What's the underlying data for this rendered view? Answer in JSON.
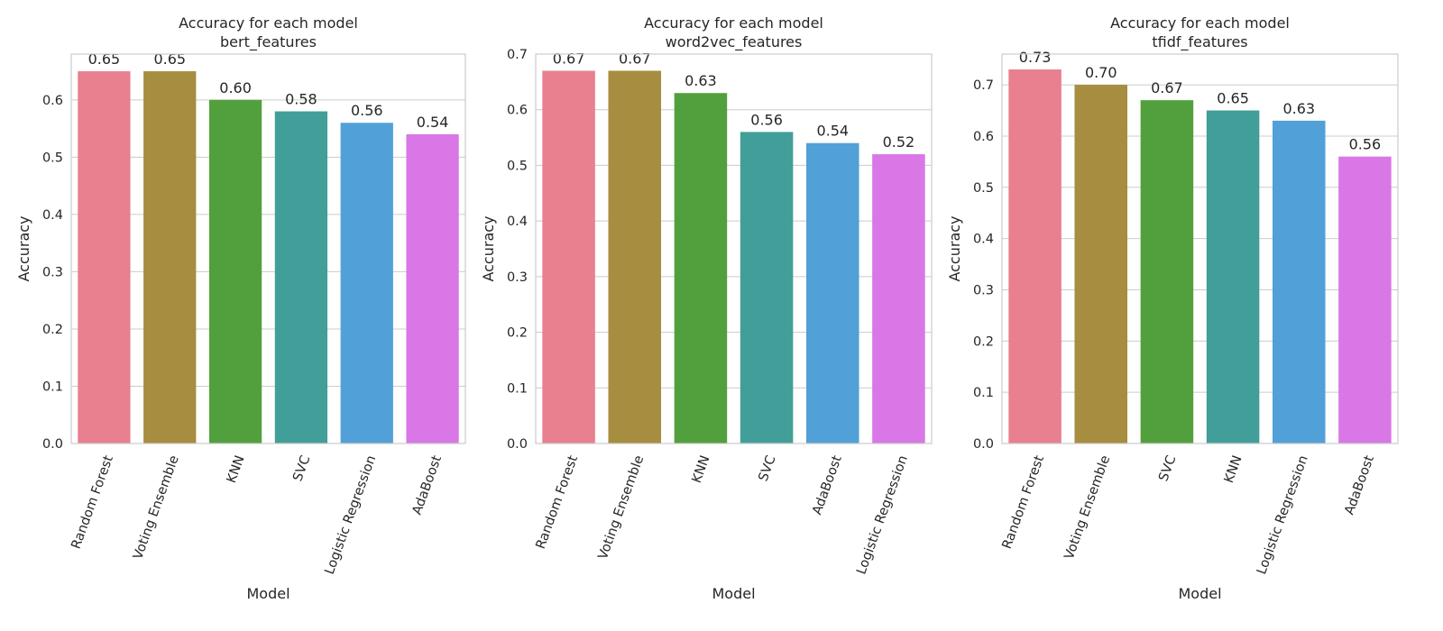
{
  "chart_data": [
    {
      "type": "bar",
      "title": "Accuracy for each model",
      "subtitle": "bert_features",
      "xlabel": "Model",
      "ylabel": "Accuracy",
      "ylim": [
        0,
        0.68
      ],
      "yticks": [
        "0.0",
        "0.1",
        "0.2",
        "0.3",
        "0.4",
        "0.5",
        "0.6"
      ],
      "grid": true,
      "categories": [
        "Random Forest",
        "Voting Ensemble",
        "KNN",
        "SVC",
        "Logistic Regression",
        "AdaBoost"
      ],
      "values": [
        0.65,
        0.65,
        0.6,
        0.58,
        0.56,
        0.54
      ],
      "value_labels": [
        "0.65",
        "0.65",
        "0.60",
        "0.58",
        "0.56",
        "0.54"
      ],
      "colors": [
        "#e8808f",
        "#a68d3f",
        "#52a03d",
        "#429e98",
        "#51a0d8",
        "#d977e6"
      ]
    },
    {
      "type": "bar",
      "title": "Accuracy for each model",
      "subtitle": "word2vec_features",
      "xlabel": "Model",
      "ylabel": "Accuracy",
      "ylim": [
        0,
        0.7
      ],
      "yticks": [
        "0.0",
        "0.1",
        "0.2",
        "0.3",
        "0.4",
        "0.5",
        "0.6",
        "0.7"
      ],
      "grid": true,
      "categories": [
        "Random Forest",
        "Voting Ensemble",
        "KNN",
        "SVC",
        "AdaBoost",
        "Logistic Regression"
      ],
      "values": [
        0.67,
        0.67,
        0.63,
        0.56,
        0.54,
        0.52
      ],
      "value_labels": [
        "0.67",
        "0.67",
        "0.63",
        "0.56",
        "0.54",
        "0.52"
      ],
      "colors": [
        "#e8808f",
        "#a68d3f",
        "#52a03d",
        "#429e98",
        "#51a0d8",
        "#d977e6"
      ]
    },
    {
      "type": "bar",
      "title": "Accuracy for each model",
      "subtitle": "tfidf_features",
      "xlabel": "Model",
      "ylabel": "Accuracy",
      "ylim": [
        0,
        0.76
      ],
      "yticks": [
        "0.0",
        "0.1",
        "0.2",
        "0.3",
        "0.4",
        "0.5",
        "0.6",
        "0.7"
      ],
      "grid": true,
      "categories": [
        "Random Forest",
        "Voting Ensemble",
        "SVC",
        "KNN",
        "Logistic Regression",
        "AdaBoost"
      ],
      "values": [
        0.73,
        0.7,
        0.67,
        0.65,
        0.63,
        0.56
      ],
      "value_labels": [
        "0.73",
        "0.70",
        "0.67",
        "0.65",
        "0.63",
        "0.56"
      ],
      "colors": [
        "#e8808f",
        "#a68d3f",
        "#52a03d",
        "#429e98",
        "#51a0d8",
        "#d977e6"
      ]
    }
  ]
}
